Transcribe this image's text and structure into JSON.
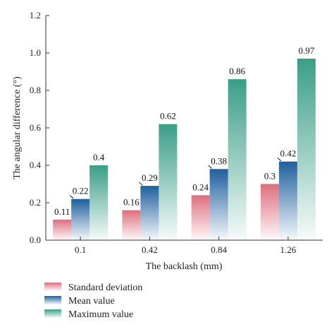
{
  "chart_data": {
    "type": "bar",
    "xlabel": "The backlash (mm)",
    "ylabel": "The angular difference (°)",
    "categories": [
      "0.1",
      "0.42",
      "0.84",
      "1.26"
    ],
    "ylim": [
      0,
      1.2
    ],
    "yticks": [
      "0.0",
      "0.2",
      "0.4",
      "0.6",
      "0.8",
      "1.0",
      "1.2"
    ],
    "legend_position": "bottom-left",
    "grid": false,
    "series": [
      {
        "name": "Standard deviation",
        "values": [
          0.11,
          0.16,
          0.24,
          0.3
        ],
        "labels": [
          "0.11",
          "0.16",
          "0.24",
          "0.3"
        ],
        "color": "#dd6f7e"
      },
      {
        "name": "Mean value",
        "values": [
          0.22,
          0.29,
          0.38,
          0.42
        ],
        "labels": [
          "0.22",
          "0.29",
          "0.38",
          "0.42"
        ],
        "color": "#1f5f9e"
      },
      {
        "name": "Maximum value",
        "values": [
          0.4,
          0.62,
          0.86,
          0.97
        ],
        "labels": [
          "0.4",
          "0.62",
          "0.86",
          "0.97"
        ],
        "color": "#3a9e87"
      }
    ]
  }
}
